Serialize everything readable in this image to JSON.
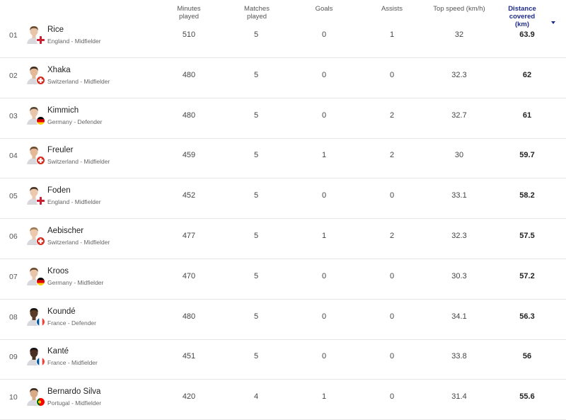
{
  "columns": {
    "minutes": "Minutes played",
    "matches": "Matches played",
    "goals": "Goals",
    "assists": "Assists",
    "speed": "Top speed (km/h)",
    "distance_line1": "Distance covered",
    "distance_line2": "(km)"
  },
  "rows": [
    {
      "rank": "01",
      "name": "Rice",
      "meta": "England - Midfielder",
      "flag": "england",
      "skin": "#e8c4a8",
      "hair": "#6b4a2b",
      "minutes": "510",
      "matches": "5",
      "goals": "0",
      "assists": "1",
      "speed": "32",
      "distance": "63.9"
    },
    {
      "rank": "02",
      "name": "Xhaka",
      "meta": "Switzerland - Midfielder",
      "flag": "switzerland",
      "skin": "#e3b896",
      "hair": "#3b2a1e",
      "minutes": "480",
      "matches": "5",
      "goals": "0",
      "assists": "0",
      "speed": "32.3",
      "distance": "62"
    },
    {
      "rank": "03",
      "name": "Kimmich",
      "meta": "Germany - Defender",
      "flag": "germany",
      "skin": "#e8c4a8",
      "hair": "#5a4632",
      "minutes": "480",
      "matches": "5",
      "goals": "0",
      "assists": "2",
      "speed": "32.7",
      "distance": "61"
    },
    {
      "rank": "04",
      "name": "Freuler",
      "meta": "Switzerland - Midfielder",
      "flag": "switzerland",
      "skin": "#e3b896",
      "hair": "#6b4a2b",
      "minutes": "459",
      "matches": "5",
      "goals": "1",
      "assists": "2",
      "speed": "30",
      "distance": "59.7"
    },
    {
      "rank": "05",
      "name": "Foden",
      "meta": "England - Midfielder",
      "flag": "england",
      "skin": "#ecc8ad",
      "hair": "#4a3424",
      "minutes": "452",
      "matches": "5",
      "goals": "0",
      "assists": "0",
      "speed": "33.1",
      "distance": "58.2"
    },
    {
      "rank": "06",
      "name": "Aebischer",
      "meta": "Switzerland - Midfielder",
      "flag": "switzerland",
      "skin": "#ecc8ad",
      "hair": "#a07850",
      "minutes": "477",
      "matches": "5",
      "goals": "1",
      "assists": "2",
      "speed": "32.3",
      "distance": "57.5"
    },
    {
      "rank": "07",
      "name": "Kroos",
      "meta": "Germany - Midfielder",
      "flag": "germany",
      "skin": "#e8c4a8",
      "hair": "#6b4a2b",
      "minutes": "470",
      "matches": "5",
      "goals": "0",
      "assists": "0",
      "speed": "30.3",
      "distance": "57.2"
    },
    {
      "rank": "08",
      "name": "Koundé",
      "meta": "France - Defender",
      "flag": "france",
      "skin": "#5a3a28",
      "hair": "#1a1410",
      "minutes": "480",
      "matches": "5",
      "goals": "0",
      "assists": "0",
      "speed": "34.1",
      "distance": "56.3"
    },
    {
      "rank": "09",
      "name": "Kanté",
      "meta": "France - Midfielder",
      "flag": "france",
      "skin": "#4a3022",
      "hair": "#141010",
      "minutes": "451",
      "matches": "5",
      "goals": "0",
      "assists": "0",
      "speed": "33.8",
      "distance": "56"
    },
    {
      "rank": "10",
      "name": "Bernardo Silva",
      "meta": "Portugal - Midfielder",
      "flag": "portugal",
      "skin": "#d9aa86",
      "hair": "#3b2a1e",
      "minutes": "420",
      "matches": "4",
      "goals": "1",
      "assists": "0",
      "speed": "31.4",
      "distance": "55.6"
    }
  ],
  "colors": {
    "accent": "#1d2a8c",
    "divider": "#e6e6e6",
    "england_red": "#cc1f2f",
    "swiss_red": "#d52b1e",
    "germany_black": "#000000",
    "germany_red": "#dd0000",
    "germany_gold": "#ffce00",
    "france_blue": "#0055a4",
    "france_red": "#ef4135",
    "portugal_green": "#006600",
    "portugal_red": "#ff0000"
  }
}
